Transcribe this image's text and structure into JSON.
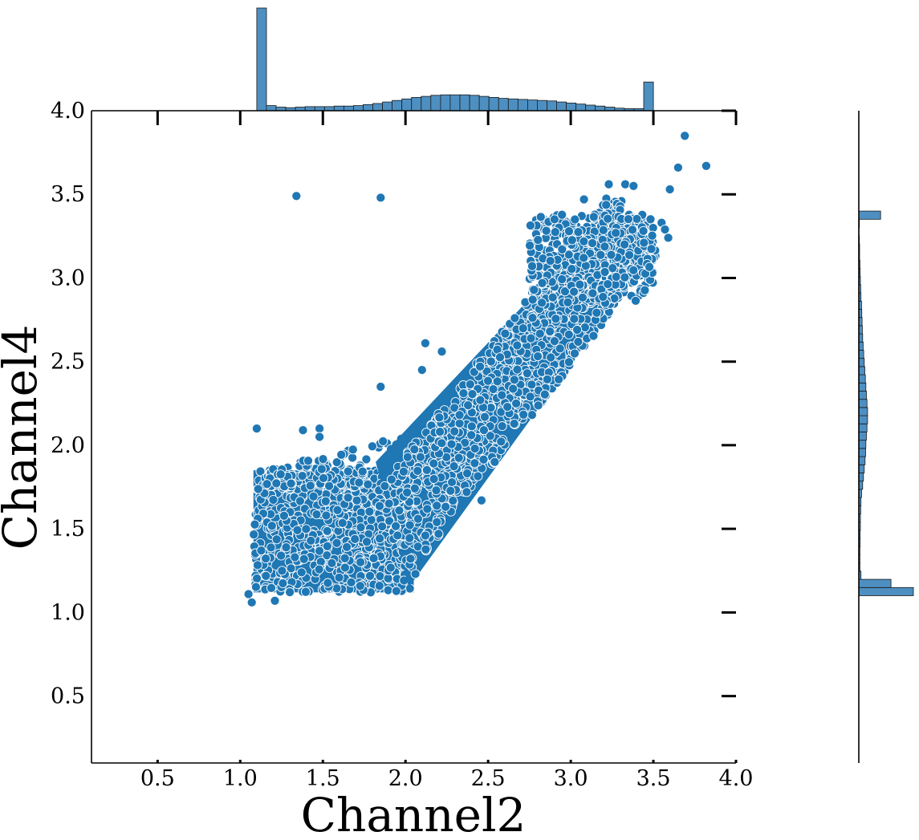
{
  "chart_data": {
    "type": "scatter",
    "xlabel": "Channel2",
    "ylabel": "Channel4",
    "xlim": [
      0.1,
      4.0
    ],
    "ylim": [
      0.1,
      4.0
    ],
    "x_ticks": [
      "0.5",
      "1.0",
      "1.5",
      "2.0",
      "2.5",
      "3.0",
      "3.5",
      "4.0"
    ],
    "y_ticks": [
      "0.5",
      "1.0",
      "1.5",
      "2.0",
      "2.5",
      "3.0",
      "3.5",
      "4.0"
    ],
    "grid": false,
    "legend": "none",
    "colors": {
      "points": "#1f77b4",
      "point_edge": "#ffffff",
      "hist_fill": "#4e8fc1",
      "hist_edge": "#1a1a1a"
    },
    "scatter_regions": [
      {
        "name": "low-cluster",
        "x": [
          1.08,
          2.05
        ],
        "y": [
          1.12,
          1.85
        ],
        "density": "high"
      },
      {
        "name": "diagonal-band",
        "from": [
          1.9,
          1.45
        ],
        "to": [
          3.4,
          3.35
        ],
        "density": "high"
      },
      {
        "name": "high-cluster",
        "x": [
          2.75,
          3.5
        ],
        "y": [
          2.85,
          3.38
        ],
        "density": "high"
      }
    ],
    "outliers": [
      {
        "x": 1.34,
        "y": 3.49
      },
      {
        "x": 1.85,
        "y": 3.48
      },
      {
        "x": 1.1,
        "y": 2.1
      },
      {
        "x": 1.38,
        "y": 2.09
      },
      {
        "x": 1.48,
        "y": 2.1
      },
      {
        "x": 1.48,
        "y": 2.05
      },
      {
        "x": 1.85,
        "y": 2.35
      },
      {
        "x": 2.1,
        "y": 2.45
      },
      {
        "x": 2.12,
        "y": 2.61
      },
      {
        "x": 2.22,
        "y": 2.56
      },
      {
        "x": 2.42,
        "y": 1.98
      },
      {
        "x": 2.54,
        "y": 1.9
      },
      {
        "x": 2.37,
        "y": 1.72
      },
      {
        "x": 2.46,
        "y": 1.67
      },
      {
        "x": 2.19,
        "y": 1.54
      },
      {
        "x": 2.2,
        "y": 1.47
      },
      {
        "x": 2.12,
        "y": 1.46
      },
      {
        "x": 2.06,
        "y": 1.23
      },
      {
        "x": 3.69,
        "y": 3.85
      },
      {
        "x": 3.82,
        "y": 3.67
      },
      {
        "x": 3.65,
        "y": 3.66
      },
      {
        "x": 3.6,
        "y": 3.53
      },
      {
        "x": 3.55,
        "y": 3.33
      },
      {
        "x": 3.57,
        "y": 3.29
      },
      {
        "x": 3.59,
        "y": 3.24
      },
      {
        "x": 3.08,
        "y": 3.47
      },
      {
        "x": 3.23,
        "y": 3.56
      },
      {
        "x": 3.33,
        "y": 3.56
      },
      {
        "x": 3.38,
        "y": 3.55
      },
      {
        "x": 1.07,
        "y": 1.06
      },
      {
        "x": 1.05,
        "y": 1.11
      },
      {
        "x": 1.21,
        "y": 1.07
      }
    ],
    "marginal_x_histogram": {
      "bin_edges_range": [
        1.1,
        3.5
      ],
      "counts": [
        100,
        5,
        3.5,
        3,
        3.5,
        4,
        4,
        4,
        4.5,
        4.5,
        5,
        6,
        7,
        8.5,
        10,
        11.5,
        13,
        14,
        15,
        15.5,
        15.5,
        15.5,
        15,
        14,
        13,
        12,
        11.5,
        11,
        10.5,
        10,
        9.5,
        8.5,
        7.5,
        6.5,
        5.5,
        4.5,
        3.5,
        2.5,
        2,
        2,
        28
      ],
      "unit": "relative"
    },
    "marginal_y_histogram": {
      "bin_edges_range": [
        1.1,
        3.4
      ],
      "counts": [
        100,
        59,
        4,
        2,
        2,
        2,
        2.5,
        2.5,
        3,
        3,
        3.5,
        4,
        5,
        7,
        8.5,
        10,
        11.5,
        12.5,
        13,
        14,
        15,
        16,
        16,
        15,
        14,
        13,
        12,
        11,
        10,
        9,
        8,
        7,
        6.5,
        6,
        5.5,
        5,
        4,
        3.5,
        3,
        2.5,
        2,
        1.5,
        1.5,
        1,
        0.5,
        1,
        40
      ],
      "unit": "relative"
    }
  }
}
